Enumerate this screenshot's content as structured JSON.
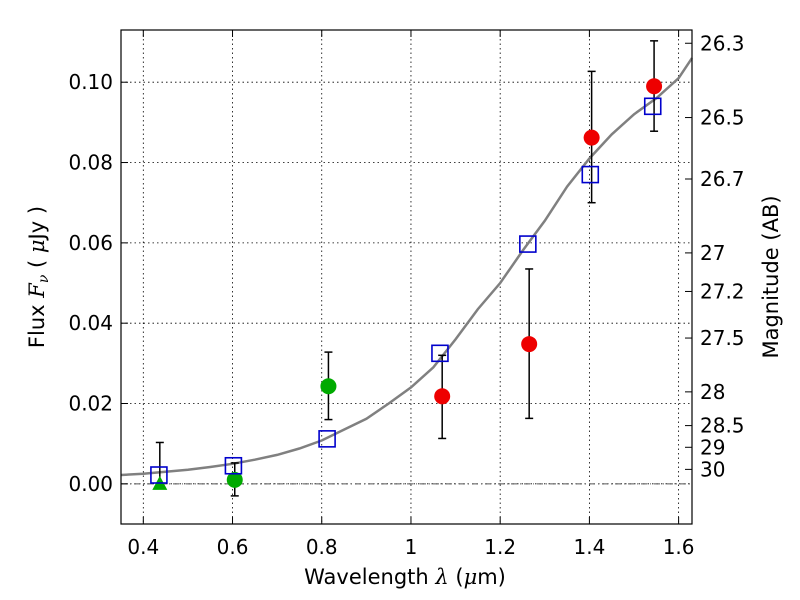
{
  "chart_data": {
    "type": "scatter",
    "title": "",
    "xlabel": "Wavelength λ (μm)",
    "ylabel": "Flux Fν ( μJy )",
    "y2label": "Magnitude (AB)",
    "xlim": [
      0.35,
      1.63
    ],
    "ylim": [
      -0.01,
      0.113
    ],
    "grid": true,
    "legend": "none",
    "xticks": [
      0.4,
      0.6,
      0.8,
      1.0,
      1.2,
      1.4,
      1.6
    ],
    "xtick_labels": [
      "0.4",
      "0.6",
      "0.8",
      "1",
      "1.2",
      "1.4",
      "1.6"
    ],
    "yticks": [
      0.0,
      0.02,
      0.04,
      0.06,
      0.08,
      0.1
    ],
    "ytick_labels": [
      "0.00",
      "0.02",
      "0.04",
      "0.06",
      "0.08",
      "0.10"
    ],
    "mag_ticks": [
      {
        "label": "26.3",
        "flux": 0.1097
      },
      {
        "label": "26.5",
        "flux": 0.0912
      },
      {
        "label": "26.7",
        "flux": 0.0759
      },
      {
        "label": "27",
        "flux": 0.0575
      },
      {
        "label": "27.2",
        "flux": 0.0479
      },
      {
        "label": "27.5",
        "flux": 0.0363
      },
      {
        "label": "28",
        "flux": 0.0229
      },
      {
        "label": "28.5",
        "flux": 0.0145
      },
      {
        "label": "29",
        "flux": 0.0091
      },
      {
        "label": "30",
        "flux": 0.0036
      }
    ],
    "colors": {
      "model": "#808080",
      "green": "#00aa00",
      "red": "#ee0000",
      "blue": "#0000cc",
      "zero_line": "#555555"
    },
    "series": [
      {
        "marker": "line",
        "color": "#808080",
        "x": [
          0.35,
          0.4,
          0.45,
          0.5,
          0.55,
          0.6,
          0.65,
          0.7,
          0.75,
          0.8,
          0.85,
          0.9,
          0.95,
          1.0,
          1.05,
          1.1,
          1.15,
          1.2,
          1.25,
          1.3,
          1.35,
          1.4,
          1.45,
          1.5,
          1.55,
          1.6,
          1.63
        ],
        "y": [
          0.0022,
          0.0025,
          0.003,
          0.0035,
          0.0042,
          0.005,
          0.006,
          0.0072,
          0.0088,
          0.0108,
          0.0135,
          0.0162,
          0.02,
          0.024,
          0.029,
          0.036,
          0.0435,
          0.05,
          0.058,
          0.0655,
          0.074,
          0.081,
          0.087,
          0.092,
          0.096,
          0.101,
          0.106
        ]
      },
      {
        "marker": "circle",
        "color": "#00aa00",
        "x": [
          0.605,
          0.815
        ],
        "y": [
          0.001,
          0.0243
        ],
        "yerr_low": [
          -0.003,
          0.016
        ],
        "yerr_high": [
          0.0052,
          0.0328
        ]
      },
      {
        "marker": "triangle",
        "color": "#00aa00",
        "x": [
          0.437
        ],
        "y": [
          0.0
        ],
        "yerr_low": [
          0.0
        ],
        "yerr_high": [
          0.0103
        ]
      },
      {
        "marker": "circle",
        "color": "#ee0000",
        "x": [
          1.07,
          1.265,
          1.405,
          1.545
        ],
        "y": [
          0.0218,
          0.0348,
          0.0862,
          0.099
        ],
        "yerr_low": [
          0.0113,
          0.0163,
          0.07,
          0.0878
        ],
        "yerr_high": [
          0.032,
          0.0535,
          0.1027,
          0.1103
        ]
      },
      {
        "marker": "square",
        "color": "#0000cc",
        "x": [
          0.435,
          0.602,
          0.812,
          1.065,
          1.262,
          1.402,
          1.542
        ],
        "y": [
          0.0022,
          0.0045,
          0.0112,
          0.0325,
          0.0597,
          0.077,
          0.094
        ]
      }
    ]
  }
}
